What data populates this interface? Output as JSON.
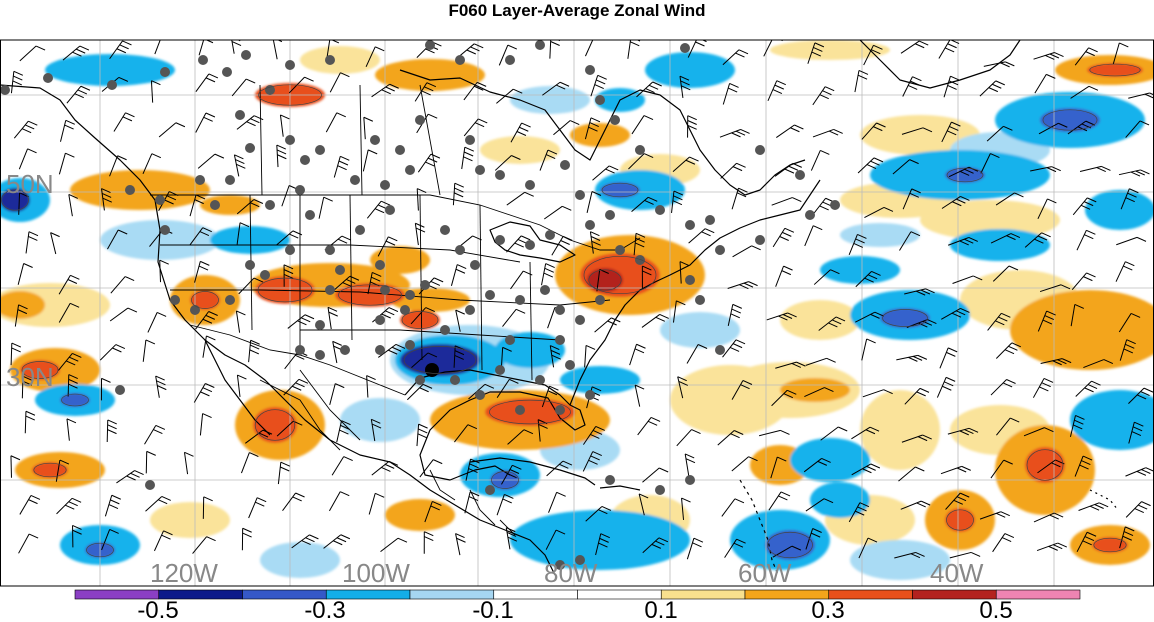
{
  "title": "F060 Layer-Average Zonal Wind",
  "lat_labels": [
    "50N",
    "30N"
  ],
  "lon_labels": [
    "120W",
    "100W",
    "80W",
    "60W",
    "40W"
  ],
  "colorbar": {
    "labels": [
      "-0.5",
      "-0.3",
      "-0.1",
      "0.1",
      "0.3",
      "0.5"
    ],
    "colors": [
      "#8b3fc4",
      "#0c1a8a",
      "#3558c8",
      "#14aee8",
      "#a6d6f2",
      "#ffffff",
      "#ffffff",
      "#f8e08e",
      "#f3a51b",
      "#e8501b",
      "#b3221f",
      "#ee84b2"
    ]
  },
  "field_colors": {
    "neg_strong": "#1a2a9a",
    "neg_mid": "#3562cc",
    "neg": "#16b2ec",
    "neg_light": "#a9dbf4",
    "pos_light": "#fae39a",
    "pos": "#f3a51b",
    "pos_mid": "#e8501b",
    "pos_strong": "#b3221f"
  },
  "highlight_station": "black-dot"
}
